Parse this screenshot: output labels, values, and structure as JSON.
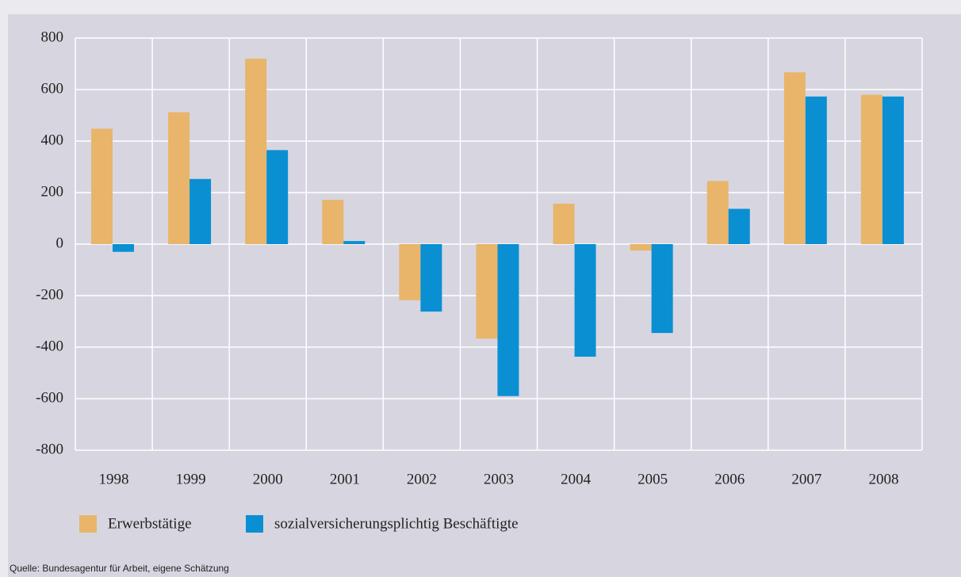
{
  "chart_data": {
    "type": "bar",
    "categories": [
      "1998",
      "1999",
      "2000",
      "2001",
      "2002",
      "2003",
      "2004",
      "2005",
      "2006",
      "2007",
      "2008"
    ],
    "series": [
      {
        "name": "Erwerbstätige",
        "color": "#e8b56b",
        "values": [
          448,
          512,
          720,
          172,
          -218,
          -367,
          157,
          -25,
          245,
          667,
          580
        ]
      },
      {
        "name": "sozialversicherungsplichtig Beschäftigte",
        "color": "#0a8fd3",
        "values": [
          -30,
          253,
          365,
          12,
          -262,
          -590,
          -437,
          -345,
          137,
          573,
          573
        ]
      }
    ],
    "ylim": [
      -800,
      800
    ],
    "yticks": [
      -800,
      -600,
      -400,
      -200,
      0,
      200,
      400,
      600,
      800
    ],
    "grid": true,
    "source": "Quelle: Bundesagentur für Arbeit, eigene Schätzung"
  }
}
